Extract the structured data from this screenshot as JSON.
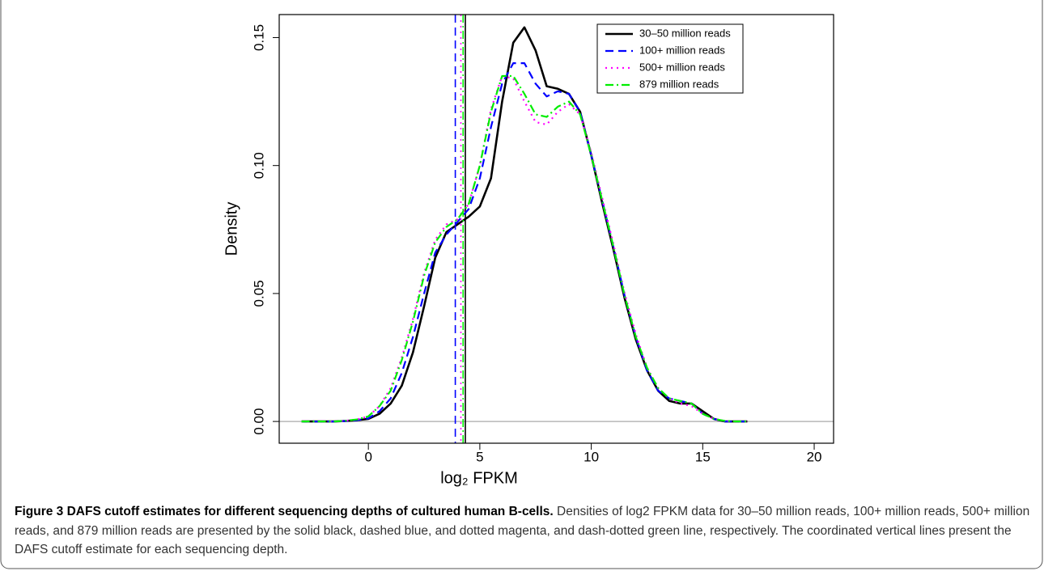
{
  "chart_data": {
    "type": "line",
    "xlabel": "log₂ FPKM",
    "ylabel": "Density",
    "x": [
      -3,
      -2.5,
      -2,
      -1.5,
      -1,
      -0.5,
      0,
      0.5,
      1,
      1.5,
      2,
      2.5,
      3,
      3.5,
      4,
      4.5,
      5,
      5.5,
      6,
      6.5,
      7,
      7.5,
      8,
      8.5,
      9,
      9.5,
      10,
      10.5,
      11,
      11.5,
      12,
      12.5,
      13,
      13.5,
      14,
      14.5,
      15,
      15.5,
      16,
      16.5,
      17
    ],
    "series": [
      {
        "name": "30–50 million reads",
        "color": "#000000",
        "linestyle": "solid",
        "cutoff": 4.35,
        "values": [
          0,
          0,
          0,
          0,
          0.0002,
          0.0005,
          0.001,
          0.003,
          0.007,
          0.014,
          0.027,
          0.045,
          0.064,
          0.074,
          0.077,
          0.08,
          0.084,
          0.095,
          0.125,
          0.148,
          0.154,
          0.145,
          0.131,
          0.13,
          0.128,
          0.121,
          0.104,
          0.085,
          0.067,
          0.048,
          0.032,
          0.02,
          0.012,
          0.008,
          0.007,
          0.007,
          0.004,
          0.001,
          0,
          0,
          0
        ]
      },
      {
        "name": "100+ million reads",
        "color": "#0000ff",
        "linestyle": "dashed",
        "cutoff": 3.9,
        "values": [
          0,
          0,
          0,
          0,
          0.0002,
          0.0005,
          0.0012,
          0.004,
          0.009,
          0.019,
          0.033,
          0.05,
          0.066,
          0.073,
          0.078,
          0.083,
          0.095,
          0.115,
          0.132,
          0.14,
          0.14,
          0.132,
          0.127,
          0.129,
          0.128,
          0.121,
          0.104,
          0.086,
          0.068,
          0.049,
          0.033,
          0.02,
          0.012,
          0.009,
          0.008,
          0.007,
          0.003,
          0.001,
          0,
          0,
          0
        ]
      },
      {
        "name": "500+ million reads",
        "color": "#ff00ff",
        "linestyle": "dotted",
        "cutoff": 4.15,
        "values": [
          0,
          0,
          0,
          0,
          0.0003,
          0.0008,
          0.002,
          0.006,
          0.013,
          0.025,
          0.04,
          0.058,
          0.071,
          0.077,
          0.079,
          0.085,
          0.1,
          0.122,
          0.135,
          0.134,
          0.125,
          0.117,
          0.116,
          0.121,
          0.124,
          0.12,
          0.105,
          0.087,
          0.069,
          0.05,
          0.034,
          0.021,
          0.013,
          0.009,
          0.007,
          0.006,
          0.003,
          0.001,
          0.0002,
          0,
          0
        ]
      },
      {
        "name": "879 million reads",
        "color": "#00ee00",
        "linestyle": "dashdot",
        "cutoff": 4.25,
        "values": [
          0,
          0,
          0,
          0,
          0.0003,
          0.0008,
          0.002,
          0.006,
          0.012,
          0.024,
          0.039,
          0.057,
          0.07,
          0.076,
          0.079,
          0.085,
          0.1,
          0.121,
          0.135,
          0.135,
          0.128,
          0.12,
          0.119,
          0.123,
          0.125,
          0.12,
          0.104,
          0.086,
          0.068,
          0.049,
          0.033,
          0.021,
          0.013,
          0.009,
          0.008,
          0.007,
          0.003,
          0.001,
          0.0002,
          0,
          0
        ]
      }
    ],
    "xlim": [
      -4,
      20.87
    ],
    "xticks": [
      0,
      5,
      10,
      15,
      20
    ],
    "ylim": [
      -0.0085,
      0.159
    ],
    "yticks": [
      {
        "value": 0,
        "label": "0.00"
      },
      {
        "value": 0.05,
        "label": "0.05"
      },
      {
        "value": 0.1,
        "label": "0.10"
      },
      {
        "value": 0.15,
        "label": "0.15"
      }
    ],
    "legend": "upper right"
  },
  "caption": {
    "label": "Figure 3 DAFS cutoff estimates for different sequencing depths of cultured human B-cells.",
    "text": "Densities of log2 FPKM data for 30–50 million reads, 100+ million reads, 500+ million reads, and 879 million reads are presented by the solid black, dashed blue, and dotted magenta, and dash-dotted green line, respectively. The coordinated vertical lines present the DAFS cutoff estimate for each sequencing depth."
  }
}
